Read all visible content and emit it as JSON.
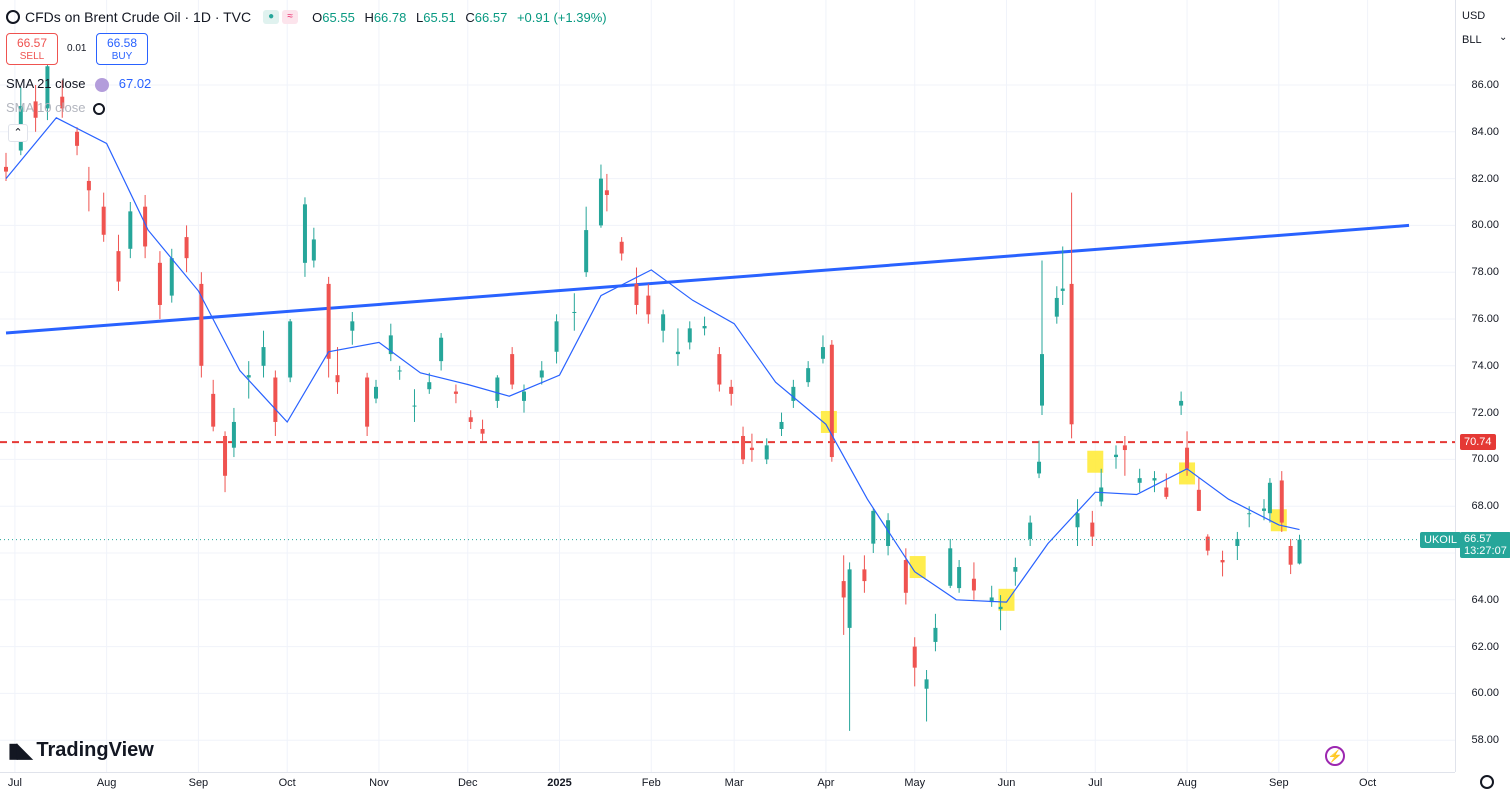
{
  "legend": {
    "title": "CFDs on Brent Crude Oil · 1D · TVC",
    "open_label": "O",
    "open": "65.55",
    "high_label": "H",
    "high": "66.78",
    "low_label": "L",
    "low": "65.51",
    "close_label": "C",
    "close": "66.57",
    "change": "+0.91 (+1.39%)"
  },
  "trade": {
    "sell_price": "66.57",
    "sell_label": "SELL",
    "buy_price": "66.58",
    "buy_label": "BUY",
    "spread": "0.01"
  },
  "indicators": [
    {
      "label": "SMA 21 close",
      "value": "67.02"
    },
    {
      "label": "SMA 10 close",
      "value": ""
    }
  ],
  "axis": {
    "currency": "USD",
    "unit": "BLL",
    "y_ticks": [
      "86.00",
      "84.00",
      "82.00",
      "80.00",
      "78.00",
      "76.00",
      "74.00",
      "72.00",
      "70.00",
      "68.00",
      "66.00",
      "64.00",
      "62.00",
      "60.00",
      "58.00"
    ],
    "x_ticks": [
      "Jul",
      "Aug",
      "Sep",
      "Oct",
      "Nov",
      "Dec",
      "2025",
      "Feb",
      "Mar",
      "Apr",
      "May",
      "Jun",
      "Jul",
      "Aug",
      "Sep",
      "Oct"
    ]
  },
  "tags": {
    "resistance": "70.74",
    "symbol": "UKOIL",
    "last_price": "66.57",
    "countdown": "13:27:07"
  },
  "brand": "TradingView",
  "colors": {
    "up": "#26a69a",
    "down": "#ef5350",
    "sma": "#2962ff",
    "trendline": "#2962ff",
    "resistance": "#e53935",
    "highlight": "#ffeb3b"
  },
  "chart_data": {
    "type": "candlestick",
    "symbol": "UKOIL",
    "interval": "1D",
    "ylim": [
      57,
      88
    ],
    "series": [
      {
        "name": "SMA 21 close",
        "points": [
          [
            "2024-06-28",
            82.0
          ],
          [
            "2024-07-15",
            84.6
          ],
          [
            "2024-08-01",
            83.5
          ],
          [
            "2024-08-15",
            79.8
          ],
          [
            "2024-09-01",
            77.2
          ],
          [
            "2024-09-15",
            73.8
          ],
          [
            "2024-10-01",
            71.6
          ],
          [
            "2024-10-15",
            74.6
          ],
          [
            "2024-11-01",
            75.0
          ],
          [
            "2024-11-15",
            73.7
          ],
          [
            "2024-12-01",
            73.2
          ],
          [
            "2024-12-15",
            72.7
          ],
          [
            "2025-01-01",
            73.6
          ],
          [
            "2025-01-15",
            77.0
          ],
          [
            "2025-02-01",
            78.1
          ],
          [
            "2025-02-15",
            76.8
          ],
          [
            "2025-03-01",
            75.8
          ],
          [
            "2025-03-15",
            73.3
          ],
          [
            "2025-04-01",
            71.5
          ],
          [
            "2025-04-15",
            68.3
          ],
          [
            "2025-05-01",
            65.2
          ],
          [
            "2025-05-15",
            64.0
          ],
          [
            "2025-06-01",
            63.9
          ],
          [
            "2025-06-15",
            66.4
          ],
          [
            "2025-07-01",
            68.6
          ],
          [
            "2025-07-15",
            68.5
          ],
          [
            "2025-08-01",
            69.6
          ],
          [
            "2025-08-15",
            68.3
          ],
          [
            "2025-09-01",
            67.2
          ],
          [
            "2025-09-08",
            67.0
          ]
        ]
      }
    ],
    "trendline": {
      "start": [
        "2024-06-28",
        75.4
      ],
      "end": [
        "2025-10-15",
        80.0
      ]
    },
    "horizontal_line": 70.74,
    "highlights": [
      [
        "2025-04-02",
        71.6
      ],
      [
        "2025-05-02",
        65.4
      ],
      [
        "2025-06-01",
        64.0
      ],
      [
        "2025-07-01",
        69.9
      ],
      [
        "2025-08-01",
        69.4
      ],
      [
        "2025-09-01",
        67.4
      ]
    ],
    "candles": [
      [
        "2024-06-28",
        82.5,
        83.1,
        81.9,
        82.3
      ],
      [
        "2024-07-03",
        83.2,
        85.9,
        83.0,
        85.1
      ],
      [
        "2024-07-08",
        85.3,
        86.0,
        84.0,
        84.6
      ],
      [
        "2024-07-12",
        85.0,
        87.3,
        84.5,
        86.8
      ],
      [
        "2024-07-17",
        85.5,
        86.2,
        84.6,
        85.0
      ],
      [
        "2024-07-22",
        84.0,
        84.2,
        83.0,
        83.4
      ],
      [
        "2024-07-26",
        81.9,
        82.5,
        80.6,
        81.5
      ],
      [
        "2024-07-31",
        80.8,
        81.4,
        79.3,
        79.6
      ],
      [
        "2024-08-05",
        78.9,
        79.6,
        77.2,
        77.6
      ],
      [
        "2024-08-09",
        79.0,
        81.0,
        78.6,
        80.6
      ],
      [
        "2024-08-14",
        80.8,
        81.3,
        78.6,
        79.1
      ],
      [
        "2024-08-19",
        78.4,
        78.9,
        76.0,
        76.6
      ],
      [
        "2024-08-23",
        77.0,
        79.0,
        76.7,
        78.6
      ],
      [
        "2024-08-28",
        79.5,
        80.0,
        78.0,
        78.6
      ],
      [
        "2024-09-02",
        77.5,
        78.0,
        73.5,
        74.0
      ],
      [
        "2024-09-06",
        72.8,
        73.4,
        71.2,
        71.4
      ],
      [
        "2024-09-10",
        71.0,
        71.2,
        68.6,
        69.3
      ],
      [
        "2024-09-13",
        70.5,
        72.2,
        70.1,
        71.6
      ],
      [
        "2024-09-18",
        73.5,
        74.2,
        72.6,
        73.6
      ],
      [
        "2024-09-23",
        74.0,
        75.5,
        73.5,
        74.8
      ],
      [
        "2024-09-27",
        73.5,
        73.8,
        71.0,
        71.6
      ],
      [
        "2024-10-02",
        73.5,
        76.0,
        73.3,
        75.9
      ],
      [
        "2024-10-07",
        78.4,
        81.2,
        77.8,
        80.9
      ],
      [
        "2024-10-10",
        78.5,
        79.9,
        78.2,
        79.4
      ],
      [
        "2024-10-15",
        77.5,
        77.8,
        73.5,
        74.3
      ],
      [
        "2024-10-18",
        73.6,
        74.8,
        72.8,
        73.3
      ],
      [
        "2024-10-23",
        75.5,
        76.3,
        74.9,
        75.9
      ],
      [
        "2024-10-28",
        73.5,
        73.7,
        71.0,
        71.4
      ],
      [
        "2024-10-31",
        72.6,
        73.4,
        72.4,
        73.1
      ],
      [
        "2024-11-05",
        74.5,
        75.8,
        74.2,
        75.3
      ],
      [
        "2024-11-08",
        73.8,
        74.0,
        73.4,
        73.8
      ],
      [
        "2024-11-13",
        72.3,
        73.0,
        71.6,
        72.3
      ],
      [
        "2024-11-18",
        73.0,
        73.7,
        72.8,
        73.3
      ],
      [
        "2024-11-22",
        74.2,
        75.4,
        73.8,
        75.2
      ],
      [
        "2024-11-27",
        72.9,
        73.2,
        72.4,
        72.8
      ],
      [
        "2024-12-02",
        71.8,
        72.1,
        71.3,
        71.6
      ],
      [
        "2024-12-06",
        71.3,
        71.7,
        70.8,
        71.1
      ],
      [
        "2024-12-11",
        72.5,
        73.6,
        72.2,
        73.5
      ],
      [
        "2024-12-16",
        74.5,
        74.8,
        73.0,
        73.2
      ],
      [
        "2024-12-20",
        72.5,
        73.2,
        72.0,
        72.9
      ],
      [
        "2024-12-26",
        73.5,
        74.2,
        73.2,
        73.8
      ],
      [
        "2024-12-31",
        74.6,
        76.2,
        74.1,
        75.9
      ],
      [
        "2025-01-06",
        76.3,
        77.1,
        75.5,
        76.3
      ],
      [
        "2025-01-10",
        78.0,
        80.8,
        77.8,
        79.8
      ],
      [
        "2025-01-15",
        80.0,
        82.6,
        79.9,
        82.0
      ],
      [
        "2025-01-17",
        81.5,
        82.2,
        80.6,
        81.3
      ],
      [
        "2025-01-22",
        79.3,
        79.5,
        78.5,
        78.8
      ],
      [
        "2025-01-27",
        77.5,
        78.2,
        76.2,
        76.6
      ],
      [
        "2025-01-31",
        77.0,
        77.5,
        75.8,
        76.2
      ],
      [
        "2025-02-05",
        75.5,
        76.4,
        75.0,
        76.2
      ],
      [
        "2025-02-10",
        74.5,
        75.6,
        74.0,
        74.6
      ],
      [
        "2025-02-14",
        75.0,
        75.9,
        74.7,
        75.6
      ],
      [
        "2025-02-19",
        75.6,
        76.1,
        75.3,
        75.7
      ],
      [
        "2025-02-24",
        74.5,
        74.8,
        72.9,
        73.2
      ],
      [
        "2025-02-28",
        73.1,
        73.4,
        72.3,
        72.8
      ],
      [
        "2025-03-04",
        71.0,
        71.4,
        69.8,
        70.0
      ],
      [
        "2025-03-07",
        70.5,
        71.1,
        69.9,
        70.4
      ],
      [
        "2025-03-12",
        70.0,
        70.9,
        69.8,
        70.6
      ],
      [
        "2025-03-17",
        71.3,
        72.0,
        71.0,
        71.6
      ],
      [
        "2025-03-21",
        72.5,
        73.4,
        72.2,
        73.1
      ],
      [
        "2025-03-26",
        73.3,
        74.2,
        73.1,
        73.9
      ],
      [
        "2025-03-31",
        74.3,
        75.3,
        74.1,
        74.8
      ],
      [
        "2025-04-03",
        74.9,
        75.1,
        69.9,
        70.1
      ],
      [
        "2025-04-07",
        64.8,
        65.9,
        62.5,
        64.1
      ],
      [
        "2025-04-09",
        62.8,
        65.6,
        58.4,
        65.3
      ],
      [
        "2025-04-14",
        65.3,
        65.9,
        64.3,
        64.8
      ],
      [
        "2025-04-17",
        66.4,
        67.9,
        66.0,
        67.8
      ],
      [
        "2025-04-22",
        66.3,
        67.7,
        65.9,
        67.4
      ],
      [
        "2025-04-28",
        65.7,
        66.2,
        63.8,
        64.3
      ],
      [
        "2025-05-01",
        62.0,
        62.4,
        60.3,
        61.1
      ],
      [
        "2025-05-05",
        60.2,
        61.0,
        58.8,
        60.6
      ],
      [
        "2025-05-08",
        62.2,
        63.4,
        61.8,
        62.8
      ],
      [
        "2025-05-13",
        64.6,
        66.6,
        64.5,
        66.2
      ],
      [
        "2025-05-16",
        64.5,
        65.7,
        64.3,
        65.4
      ],
      [
        "2025-05-21",
        64.9,
        65.6,
        64.0,
        64.4
      ],
      [
        "2025-05-27",
        63.9,
        64.6,
        63.7,
        64.1
      ],
      [
        "2025-05-30",
        63.6,
        64.2,
        62.7,
        63.7
      ],
      [
        "2025-06-04",
        65.2,
        65.8,
        64.6,
        65.4
      ],
      [
        "2025-06-09",
        66.6,
        67.6,
        66.3,
        67.3
      ],
      [
        "2025-06-12",
        69.4,
        70.8,
        69.2,
        69.9
      ],
      [
        "2025-06-13",
        72.3,
        78.5,
        71.9,
        74.5
      ],
      [
        "2025-06-18",
        76.1,
        77.4,
        75.8,
        76.9
      ],
      [
        "2025-06-20",
        77.2,
        79.1,
        76.6,
        77.3
      ],
      [
        "2025-06-23",
        77.5,
        81.4,
        70.9,
        71.5
      ],
      [
        "2025-06-25",
        67.1,
        68.3,
        66.3,
        67.7
      ],
      [
        "2025-06-30",
        67.3,
        67.8,
        66.3,
        66.7
      ],
      [
        "2025-07-03",
        68.2,
        69.6,
        68.0,
        68.8
      ],
      [
        "2025-07-08",
        70.1,
        70.6,
        69.6,
        70.2
      ],
      [
        "2025-07-11",
        70.6,
        71.0,
        69.3,
        70.4
      ],
      [
        "2025-07-16",
        69.0,
        69.6,
        68.6,
        69.2
      ],
      [
        "2025-07-21",
        69.1,
        69.5,
        68.6,
        69.2
      ],
      [
        "2025-07-25",
        68.8,
        69.4,
        68.3,
        68.4
      ],
      [
        "2025-07-30",
        72.3,
        72.9,
        71.9,
        72.5
      ],
      [
        "2025-08-01",
        70.5,
        71.2,
        69.3,
        69.6
      ],
      [
        "2025-08-05",
        68.7,
        69.2,
        67.8,
        67.8
      ],
      [
        "2025-08-08",
        66.7,
        66.8,
        65.9,
        66.1
      ],
      [
        "2025-08-13",
        65.7,
        66.1,
        65.0,
        65.6
      ],
      [
        "2025-08-18",
        66.3,
        66.9,
        65.7,
        66.6
      ],
      [
        "2025-08-22",
        67.7,
        68.0,
        67.1,
        67.7
      ],
      [
        "2025-08-27",
        67.8,
        68.3,
        67.4,
        67.9
      ],
      [
        "2025-08-29",
        67.7,
        69.2,
        67.3,
        69.0
      ],
      [
        "2025-09-02",
        69.1,
        69.5,
        66.9,
        67.3
      ],
      [
        "2025-09-05",
        66.3,
        66.6,
        65.1,
        65.5
      ],
      [
        "2025-09-08",
        65.55,
        66.78,
        65.51,
        66.57
      ]
    ]
  }
}
